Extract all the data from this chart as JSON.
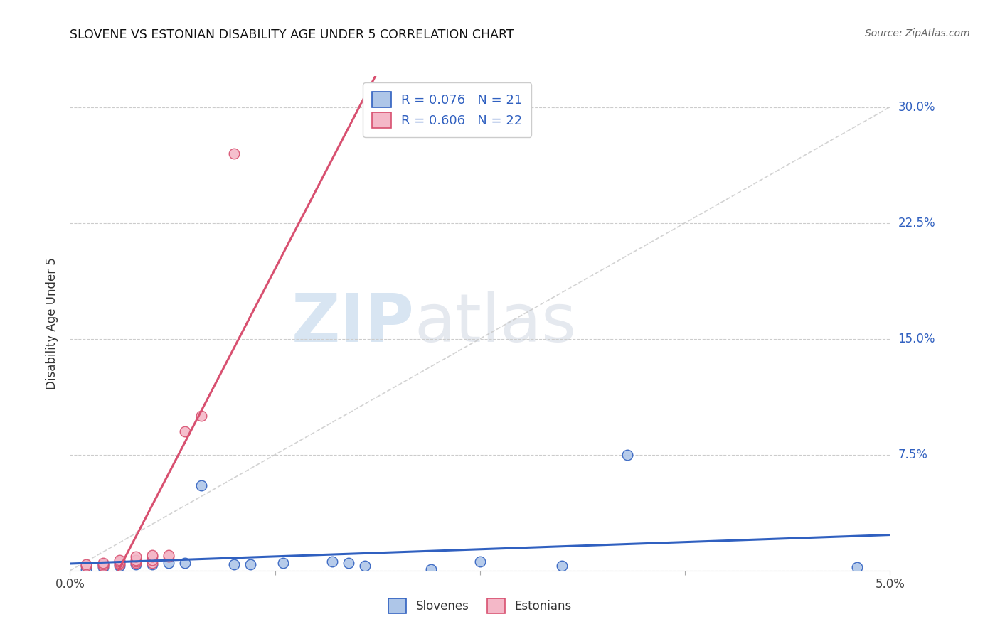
{
  "title": "SLOVENE VS ESTONIAN DISABILITY AGE UNDER 5 CORRELATION CHART",
  "source": "Source: ZipAtlas.com",
  "ylabel": "Disability Age Under 5",
  "xlim": [
    0.0,
    0.05
  ],
  "ylim": [
    0.0,
    0.32
  ],
  "yticks": [
    0.0,
    0.075,
    0.15,
    0.225,
    0.3
  ],
  "ytick_labels": [
    "",
    "7.5%",
    "15.0%",
    "22.5%",
    "30.0%"
  ],
  "xticks": [
    0.0,
    0.0125,
    0.025,
    0.0375,
    0.05
  ],
  "xtick_labels": [
    "0.0%",
    "",
    "",
    "",
    "5.0%"
  ],
  "color_slovene_fill": "#aec6e8",
  "color_estonian_fill": "#f4b8c8",
  "color_line_slovene": "#3060c0",
  "color_line_estonian": "#d85070",
  "color_diag": "#c8c8c8",
  "background_color": "#ffffff",
  "slovene_x": [
    0.001,
    0.001,
    0.002,
    0.002,
    0.003,
    0.004,
    0.005,
    0.006,
    0.007,
    0.008,
    0.01,
    0.011,
    0.013,
    0.016,
    0.017,
    0.018,
    0.022,
    0.025,
    0.03,
    0.034,
    0.048
  ],
  "slovene_y": [
    0.001,
    0.003,
    0.002,
    0.004,
    0.003,
    0.004,
    0.004,
    0.005,
    0.005,
    0.055,
    0.004,
    0.004,
    0.005,
    0.006,
    0.005,
    0.003,
    0.001,
    0.006,
    0.003,
    0.075,
    0.002
  ],
  "estonian_x": [
    0.001,
    0.001,
    0.002,
    0.002,
    0.002,
    0.003,
    0.003,
    0.003,
    0.003,
    0.004,
    0.004,
    0.004,
    0.004,
    0.005,
    0.005,
    0.005,
    0.005,
    0.006,
    0.006,
    0.007,
    0.008,
    0.01
  ],
  "estonian_y": [
    0.003,
    0.004,
    0.003,
    0.004,
    0.005,
    0.004,
    0.005,
    0.006,
    0.007,
    0.005,
    0.006,
    0.007,
    0.009,
    0.005,
    0.007,
    0.009,
    0.01,
    0.009,
    0.01,
    0.09,
    0.1,
    0.27
  ],
  "watermark_zip": "ZIP",
  "watermark_atlas": "atlas"
}
